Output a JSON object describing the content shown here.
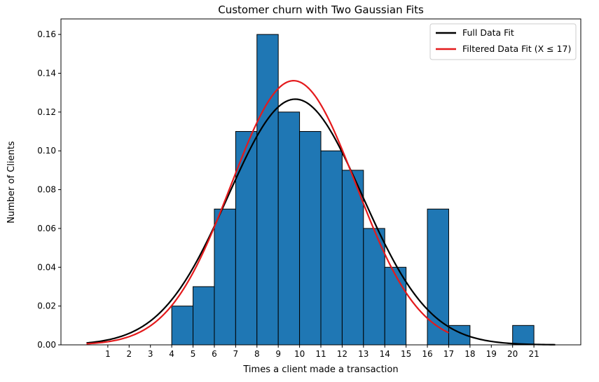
{
  "chart_data": {
    "type": "bar",
    "title": "Customer churn with Two Gaussian Fits",
    "xlabel": "Times a client made a transaction",
    "ylabel": "Number of Clients",
    "xlim": [
      -1.2,
      23.2
    ],
    "ylim": [
      0,
      0.168
    ],
    "xticks": [
      1,
      2,
      3,
      4,
      5,
      6,
      7,
      8,
      9,
      10,
      11,
      12,
      13,
      14,
      15,
      16,
      17,
      18,
      19,
      20,
      21
    ],
    "yticks": [
      0.0,
      0.02,
      0.04,
      0.06,
      0.08,
      0.1,
      0.12,
      0.14,
      0.16
    ],
    "ytick_labels": [
      "0.00",
      "0.02",
      "0.04",
      "0.06",
      "0.08",
      "0.10",
      "0.12",
      "0.14",
      "0.16"
    ],
    "grid": false,
    "legend_position": "top-right",
    "bar_color": "#1f77b4",
    "bars": [
      {
        "x0": 4,
        "x1": 5,
        "value": 0.02
      },
      {
        "x0": 5,
        "x1": 6,
        "value": 0.03
      },
      {
        "x0": 6,
        "x1": 7,
        "value": 0.07
      },
      {
        "x0": 7,
        "x1": 8,
        "value": 0.11
      },
      {
        "x0": 8,
        "x1": 9,
        "value": 0.16
      },
      {
        "x0": 9,
        "x1": 10,
        "value": 0.12
      },
      {
        "x0": 10,
        "x1": 11,
        "value": 0.11
      },
      {
        "x0": 11,
        "x1": 12,
        "value": 0.1
      },
      {
        "x0": 12,
        "x1": 13,
        "value": 0.09
      },
      {
        "x0": 13,
        "x1": 14,
        "value": 0.06
      },
      {
        "x0": 14,
        "x1": 15,
        "value": 0.04
      },
      {
        "x0": 16,
        "x1": 17,
        "value": 0.07
      },
      {
        "x0": 17,
        "x1": 18,
        "value": 0.01
      },
      {
        "x0": 20,
        "x1": 21,
        "value": 0.01
      }
    ],
    "series": [
      {
        "name": "Full Data Fit",
        "color": "#000000",
        "mean": 9.8,
        "std": 3.15,
        "x_range": [
          0,
          22
        ]
      },
      {
        "name": "Filtered Data Fit (X ≤ 17)",
        "color": "#e41a1c",
        "mean": 9.72,
        "std": 2.93,
        "x_range": [
          0,
          17
        ]
      }
    ]
  }
}
